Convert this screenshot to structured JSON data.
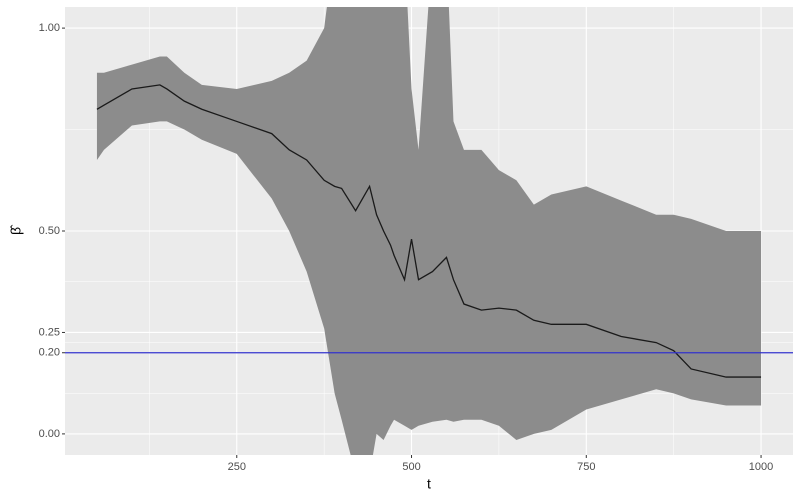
{
  "chart_data": {
    "type": "line",
    "xlabel": "t",
    "ylabel": "β̂",
    "xlim": [
      4.3,
      1045.7
    ],
    "ylim": [
      -0.052,
      1.052
    ],
    "xticks": [
      250,
      500,
      750,
      1000
    ],
    "yticks": [
      {
        "value": 0,
        "label": "0.00"
      },
      {
        "value": 0.2,
        "label": "0.20"
      },
      {
        "value": 0.25,
        "label": "0.25"
      },
      {
        "value": 0.5,
        "label": "0.50"
      },
      {
        "value": 1,
        "label": "1.00"
      }
    ],
    "x_minor_grid": [
      125,
      375,
      625,
      875
    ],
    "y_minor_grid": [
      0.1,
      0.225,
      0.375,
      0.75
    ],
    "grid": true,
    "x": [
      50,
      60,
      100,
      140,
      150,
      175,
      200,
      250,
      300,
      325,
      350,
      375,
      390,
      400,
      420,
      440,
      450,
      460,
      470,
      475,
      490,
      500,
      510,
      530,
      550,
      560,
      575,
      600,
      625,
      650,
      675,
      700,
      750,
      800,
      850,
      875,
      900,
      950,
      1000
    ],
    "values": [
      0.8,
      0.81,
      0.85,
      0.86,
      0.85,
      0.82,
      0.8,
      0.77,
      0.74,
      0.7,
      0.675,
      0.625,
      0.61,
      0.605,
      0.55,
      0.61,
      0.54,
      0.5,
      0.465,
      0.44,
      0.38,
      0.48,
      0.38,
      0.4,
      0.435,
      0.38,
      0.32,
      0.305,
      0.31,
      0.305,
      0.28,
      0.27,
      0.27,
      0.24,
      0.225,
      0.205,
      0.16,
      0.14,
      0.14
    ],
    "upper": [
      0.89,
      0.89,
      0.91,
      0.93,
      0.93,
      0.89,
      0.86,
      0.85,
      0.87,
      0.89,
      0.92,
      1.0,
      1.2,
      1.2,
      1.2,
      1.2,
      1.2,
      1.2,
      1.2,
      1.2,
      1.2,
      0.85,
      0.7,
      1.2,
      1.2,
      0.77,
      0.7,
      0.7,
      0.65,
      0.625,
      0.565,
      0.59,
      0.61,
      0.575,
      0.54,
      0.54,
      0.53,
      0.5,
      0.5
    ],
    "lower": [
      0.675,
      0.7,
      0.76,
      0.77,
      0.77,
      0.75,
      0.725,
      0.69,
      0.58,
      0.5,
      0.4,
      0.26,
      0.1,
      0.035,
      -0.1,
      -0.1,
      0.0,
      -0.015,
      0.02,
      0.035,
      0.02,
      0.01,
      0.02,
      0.03,
      0.035,
      0.03,
      0.035,
      0.035,
      0.02,
      -0.015,
      0.0,
      0.01,
      0.06,
      0.085,
      0.11,
      0.1,
      0.085,
      0.07,
      0.07
    ],
    "line_color": "#1a1a1a",
    "band_color": "#8c8c8c",
    "hline": {
      "value": 0.2,
      "color": "#3333cc"
    }
  }
}
